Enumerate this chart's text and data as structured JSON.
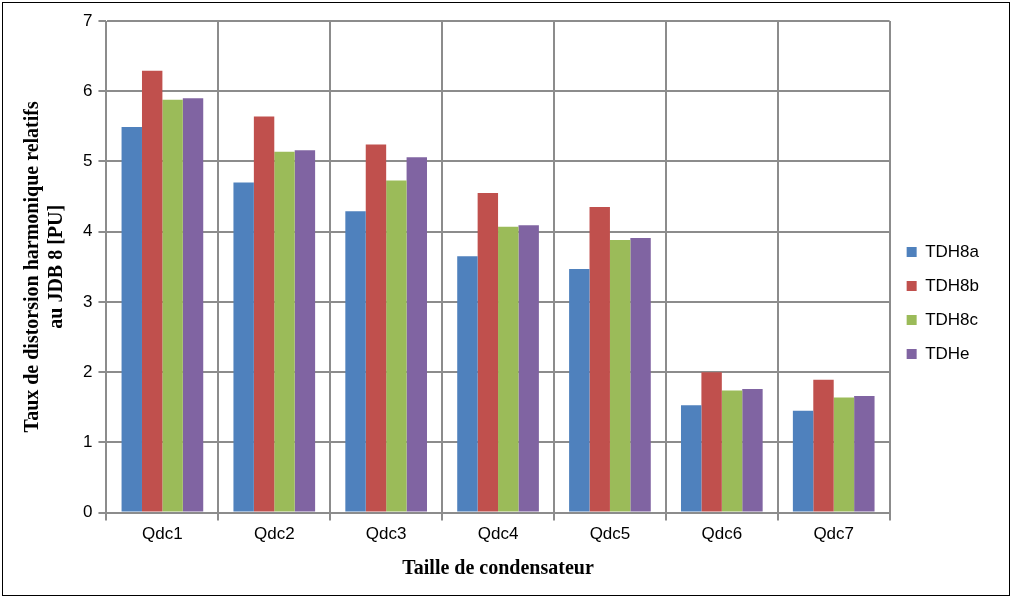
{
  "chart_data": {
    "type": "bar",
    "xlabel": "Taille de condensateur",
    "ylabel": "Taux de distorsion harmonique relatifs\nau JDB 8 [PU]",
    "categories": [
      "Qdc1",
      "Qdc2",
      "Qdc3",
      "Qdc4",
      "Qdc5",
      "Qdc6",
      "Qdc7"
    ],
    "series": [
      {
        "name": "TDH8a",
        "color": "#4f81bd",
        "values": [
          5.49,
          4.7,
          4.29,
          3.65,
          3.47,
          1.53,
          1.45
        ]
      },
      {
        "name": "TDH8b",
        "color": "#c0504d",
        "values": [
          6.29,
          5.64,
          5.24,
          4.55,
          4.35,
          2.0,
          1.89
        ]
      },
      {
        "name": "TDH8c",
        "color": "#9bbb59",
        "values": [
          5.88,
          5.14,
          4.73,
          4.07,
          3.88,
          1.74,
          1.64
        ]
      },
      {
        "name": "TDHe",
        "color": "#8064a2",
        "values": [
          5.9,
          5.16,
          5.06,
          4.09,
          3.91,
          1.76,
          1.66
        ]
      }
    ],
    "ylim": [
      0,
      7
    ],
    "yticks": [
      0,
      1,
      2,
      3,
      4,
      5,
      6,
      7
    ],
    "grid": true,
    "legend": "right"
  }
}
